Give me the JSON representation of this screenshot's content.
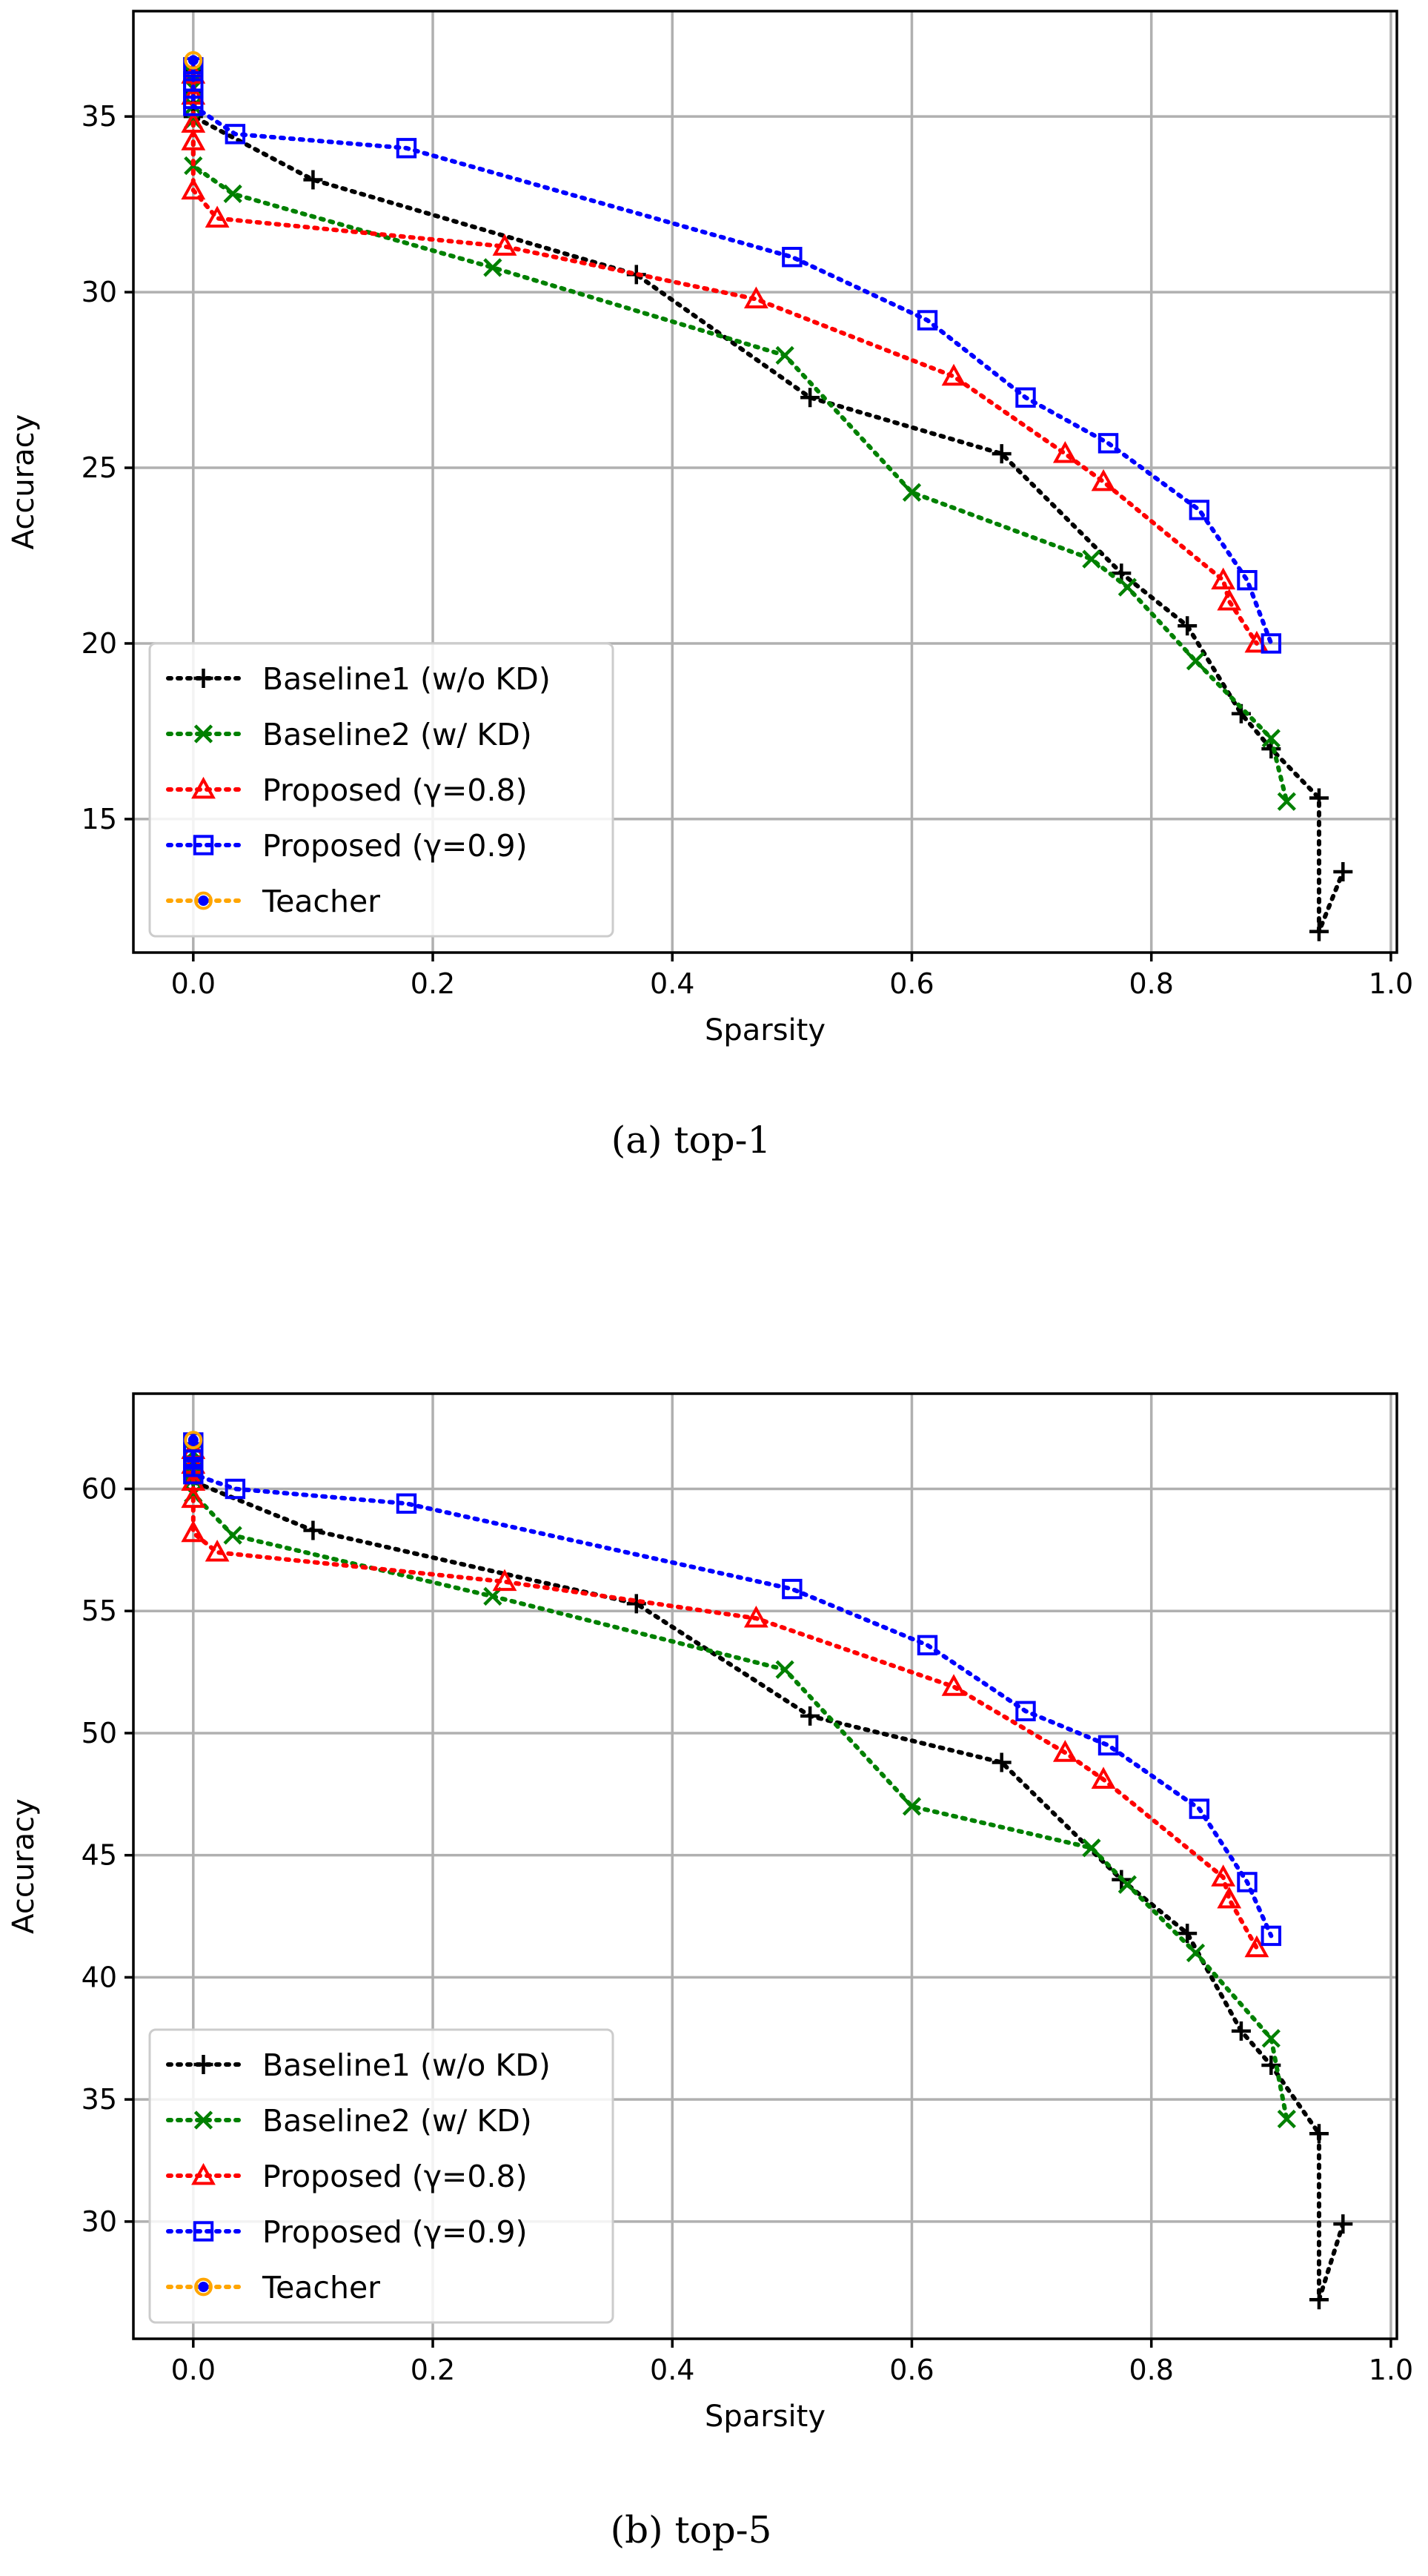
{
  "chart_data": [
    {
      "type": "line",
      "caption": "(a)  top-1",
      "xlabel": "Sparsity",
      "ylabel": "Accuracy",
      "xlim": [
        -0.05,
        1.005
      ],
      "ylim": [
        11.2,
        38
      ],
      "xticks": [
        0.0,
        0.2,
        0.4,
        0.6,
        0.8,
        1.0
      ],
      "xtick_labels": [
        "0.0",
        "0.2",
        "0.4",
        "0.6",
        "0.8",
        "1.0"
      ],
      "yticks": [
        15,
        20,
        25,
        30,
        35
      ],
      "ytick_labels": [
        "15",
        "20",
        "25",
        "30",
        "35"
      ],
      "grid": true,
      "legend_position": "lower-left",
      "series": [
        {
          "name": "Baseline1 (w/o KD)",
          "color": "#000000",
          "marker": "plus",
          "x": [
            0.0,
            0.0,
            0.0,
            0.0,
            0.0,
            0.1,
            0.37,
            0.515,
            0.675,
            0.775,
            0.83,
            0.875,
            0.9,
            0.94,
            0.94,
            0.96
          ],
          "y": [
            36.3,
            36.0,
            35.7,
            35.4,
            35.0,
            33.2,
            30.5,
            27.0,
            25.4,
            22.0,
            20.5,
            18.0,
            17.0,
            15.6,
            11.8,
            13.5
          ]
        },
        {
          "name": "Baseline2 (w/ KD)",
          "color": "#008000",
          "marker": "x",
          "x": [
            0.0,
            0.0,
            0.0,
            0.0,
            0.0,
            0.033,
            0.25,
            0.494,
            0.6,
            0.75,
            0.78,
            0.837,
            0.9,
            0.913
          ],
          "y": [
            36.2,
            35.8,
            35.3,
            34.9,
            33.6,
            32.8,
            30.7,
            28.2,
            24.3,
            22.4,
            21.6,
            19.5,
            17.3,
            15.5
          ]
        },
        {
          "name": "Proposed (γ=0.8)",
          "color": "#ff0000",
          "marker": "triangle",
          "x": [
            0.0,
            0.0,
            0.0,
            0.0,
            0.0,
            0.02,
            0.26,
            0.47,
            0.635,
            0.728,
            0.76,
            0.86,
            0.865,
            0.888
          ],
          "y": [
            36.2,
            35.6,
            34.8,
            34.3,
            32.9,
            32.1,
            31.3,
            29.8,
            27.6,
            25.4,
            24.6,
            21.8,
            21.2,
            20.0
          ]
        },
        {
          "name": "Proposed (γ=0.9)",
          "color": "#0000ff",
          "marker": "square",
          "x": [
            0.0,
            0.0,
            0.0,
            0.0,
            0.0,
            0.035,
            0.178,
            0.5,
            0.613,
            0.695,
            0.764,
            0.84,
            0.88,
            0.9
          ],
          "y": [
            36.4,
            36.0,
            35.8,
            35.5,
            35.3,
            34.5,
            34.1,
            31.0,
            29.2,
            27.0,
            25.7,
            23.8,
            21.8,
            20.0
          ]
        },
        {
          "name": "Teacher",
          "color": "#ffa500",
          "marker": "circle",
          "x": [
            0.0
          ],
          "y": [
            36.6
          ]
        }
      ]
    },
    {
      "type": "line",
      "caption": "(b)  top-5",
      "xlabel": "Sparsity",
      "ylabel": "Accuracy",
      "xlim": [
        -0.05,
        1.005
      ],
      "ylim": [
        25.2,
        63.9
      ],
      "xticks": [
        0.0,
        0.2,
        0.4,
        0.6,
        0.8,
        1.0
      ],
      "xtick_labels": [
        "0.0",
        "0.2",
        "0.4",
        "0.6",
        "0.8",
        "1.0"
      ],
      "yticks": [
        30,
        35,
        40,
        45,
        50,
        55,
        60
      ],
      "ytick_labels": [
        "30",
        "35",
        "40",
        "45",
        "50",
        "55",
        "60"
      ],
      "grid": true,
      "legend_position": "lower-left",
      "series": [
        {
          "name": "Baseline1 (w/o KD)",
          "color": "#000000",
          "marker": "plus",
          "x": [
            0.0,
            0.0,
            0.0,
            0.0,
            0.0,
            0.1,
            0.37,
            0.515,
            0.675,
            0.775,
            0.83,
            0.875,
            0.9,
            0.94,
            0.94,
            0.96
          ],
          "y": [
            61.8,
            61.3,
            61.0,
            60.6,
            60.3,
            58.3,
            55.3,
            50.7,
            48.8,
            44.0,
            41.8,
            37.8,
            36.4,
            33.6,
            26.8,
            29.9
          ]
        },
        {
          "name": "Baseline2 (w/ KD)",
          "color": "#008000",
          "marker": "x",
          "x": [
            0.0,
            0.0,
            0.0,
            0.0,
            0.0,
            0.033,
            0.25,
            0.494,
            0.6,
            0.75,
            0.78,
            0.837,
            0.9,
            0.913
          ],
          "y": [
            61.5,
            61.0,
            60.7,
            60.4,
            59.8,
            58.1,
            55.6,
            52.6,
            47.0,
            45.3,
            43.8,
            41.0,
            37.5,
            34.2
          ]
        },
        {
          "name": "Proposed (γ=0.8)",
          "color": "#ff0000",
          "marker": "triangle",
          "x": [
            0.0,
            0.0,
            0.0,
            0.0,
            0.0,
            0.02,
            0.26,
            0.47,
            0.635,
            0.728,
            0.76,
            0.86,
            0.865,
            0.888
          ],
          "y": [
            61.6,
            61.0,
            60.3,
            59.6,
            58.2,
            57.4,
            56.2,
            54.7,
            51.9,
            49.2,
            48.1,
            44.1,
            43.2,
            41.2
          ]
        },
        {
          "name": "Proposed (γ=0.9)",
          "color": "#0000ff",
          "marker": "square",
          "x": [
            0.0,
            0.0,
            0.0,
            0.0,
            0.0,
            0.035,
            0.178,
            0.5,
            0.613,
            0.695,
            0.764,
            0.84,
            0.88,
            0.9
          ],
          "y": [
            61.9,
            61.5,
            61.2,
            60.9,
            60.6,
            60.0,
            59.4,
            55.9,
            53.6,
            50.9,
            49.5,
            46.9,
            43.9,
            41.7
          ]
        },
        {
          "name": "Teacher",
          "color": "#ffa500",
          "marker": "circle",
          "x": [
            0.0
          ],
          "y": [
            62.0
          ]
        }
      ]
    }
  ]
}
